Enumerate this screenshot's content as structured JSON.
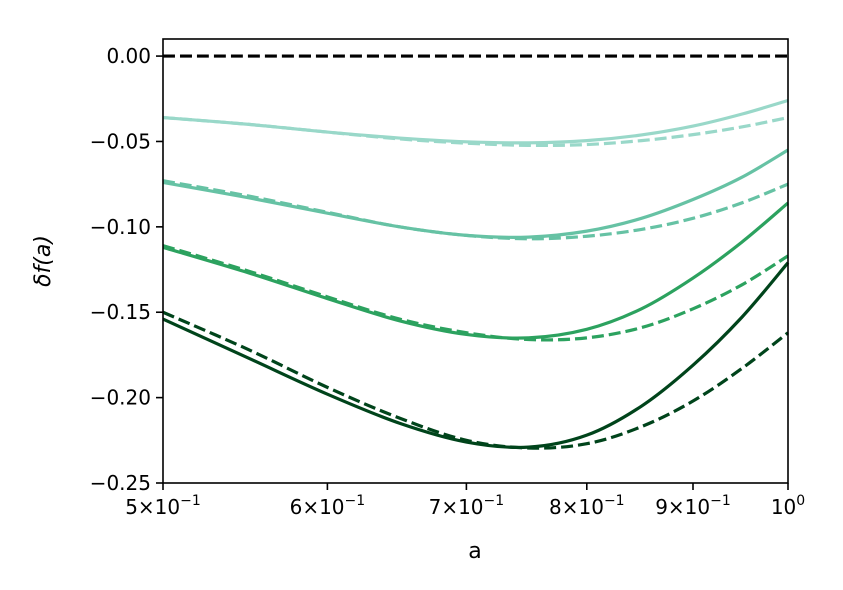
{
  "chart_data": {
    "type": "line",
    "title": "",
    "xlabel": "a",
    "ylabel": "δf(a)",
    "xscale": "log",
    "xlim": [
      0.5,
      1.0
    ],
    "ylim": [
      -0.25,
      0.01
    ],
    "grid": false,
    "x_ticks": [
      {
        "value": 0.5,
        "mantissa": "5",
        "exp": "−1"
      },
      {
        "value": 0.6,
        "mantissa": "6",
        "exp": "−1"
      },
      {
        "value": 0.7,
        "mantissa": "7",
        "exp": "−1"
      },
      {
        "value": 0.8,
        "mantissa": "8",
        "exp": "−1"
      },
      {
        "value": 0.9,
        "mantissa": "9",
        "exp": "−1"
      },
      {
        "value": 1.0,
        "mantissa": "1",
        "exp": "0"
      }
    ],
    "y_ticks": [
      {
        "value": 0.0,
        "label": "0.00"
      },
      {
        "value": -0.05,
        "label": "−0.05"
      },
      {
        "value": -0.1,
        "label": "−0.10"
      },
      {
        "value": -0.15,
        "label": "−0.15"
      },
      {
        "value": -0.2,
        "label": "−0.20"
      },
      {
        "value": -0.25,
        "label": "−0.25"
      }
    ],
    "series": [
      {
        "color": "#000000",
        "style": "dashed",
        "x": [
          0.5,
          1.0
        ],
        "y": [
          0.0,
          0.0
        ]
      },
      {
        "color": "#99d8c9",
        "style": "solid",
        "x": [
          0.5,
          0.55,
          0.6,
          0.65,
          0.7,
          0.75,
          0.8,
          0.85,
          0.9,
          0.95,
          1.0
        ],
        "y": [
          -0.036,
          -0.04,
          -0.0445,
          -0.048,
          -0.0502,
          -0.0508,
          -0.0495,
          -0.0462,
          -0.041,
          -0.034,
          -0.026
        ]
      },
      {
        "color": "#99d8c9",
        "style": "dashed",
        "x": [
          0.5,
          0.55,
          0.6,
          0.65,
          0.7,
          0.75,
          0.8,
          0.85,
          0.9,
          0.95,
          1.0
        ],
        "y": [
          -0.036,
          -0.04,
          -0.0445,
          -0.0485,
          -0.051,
          -0.0523,
          -0.0518,
          -0.0495,
          -0.046,
          -0.0415,
          -0.036
        ]
      },
      {
        "color": "#66c2a4",
        "style": "solid",
        "x": [
          0.5,
          0.55,
          0.6,
          0.65,
          0.7,
          0.75,
          0.8,
          0.85,
          0.9,
          0.95,
          1.0
        ],
        "y": [
          -0.074,
          -0.083,
          -0.092,
          -0.1,
          -0.105,
          -0.106,
          -0.1025,
          -0.095,
          -0.084,
          -0.071,
          -0.055
        ]
      },
      {
        "color": "#66c2a4",
        "style": "dashed",
        "x": [
          0.5,
          0.55,
          0.6,
          0.65,
          0.7,
          0.75,
          0.8,
          0.85,
          0.9,
          0.95,
          1.0
        ],
        "y": [
          -0.073,
          -0.082,
          -0.0915,
          -0.1,
          -0.105,
          -0.107,
          -0.1055,
          -0.1015,
          -0.095,
          -0.086,
          -0.075
        ]
      },
      {
        "color": "#2ca25f",
        "style": "solid",
        "x": [
          0.5,
          0.55,
          0.6,
          0.65,
          0.7,
          0.75,
          0.8,
          0.85,
          0.9,
          0.95,
          1.0
        ],
        "y": [
          -0.112,
          -0.127,
          -0.142,
          -0.155,
          -0.163,
          -0.165,
          -0.16,
          -0.148,
          -0.13,
          -0.109,
          -0.086
        ]
      },
      {
        "color": "#2ca25f",
        "style": "dashed",
        "x": [
          0.5,
          0.55,
          0.6,
          0.65,
          0.7,
          0.75,
          0.8,
          0.85,
          0.9,
          0.95,
          1.0
        ],
        "y": [
          -0.111,
          -0.126,
          -0.141,
          -0.154,
          -0.162,
          -0.166,
          -0.165,
          -0.159,
          -0.148,
          -0.134,
          -0.117
        ]
      },
      {
        "color": "#00441b",
        "style": "solid",
        "x": [
          0.5,
          0.55,
          0.6,
          0.65,
          0.7,
          0.75,
          0.8,
          0.85,
          0.9,
          0.95,
          1.0
        ],
        "y": [
          -0.154,
          -0.177,
          -0.198,
          -0.215,
          -0.226,
          -0.229,
          -0.222,
          -0.205,
          -0.181,
          -0.153,
          -0.121
        ]
      },
      {
        "color": "#00441b",
        "style": "dashed",
        "x": [
          0.5,
          0.55,
          0.6,
          0.65,
          0.7,
          0.75,
          0.8,
          0.85,
          0.9,
          0.95,
          1.0
        ],
        "y": [
          -0.15,
          -0.172,
          -0.194,
          -0.212,
          -0.225,
          -0.2295,
          -0.227,
          -0.217,
          -0.202,
          -0.183,
          -0.162
        ]
      }
    ]
  }
}
